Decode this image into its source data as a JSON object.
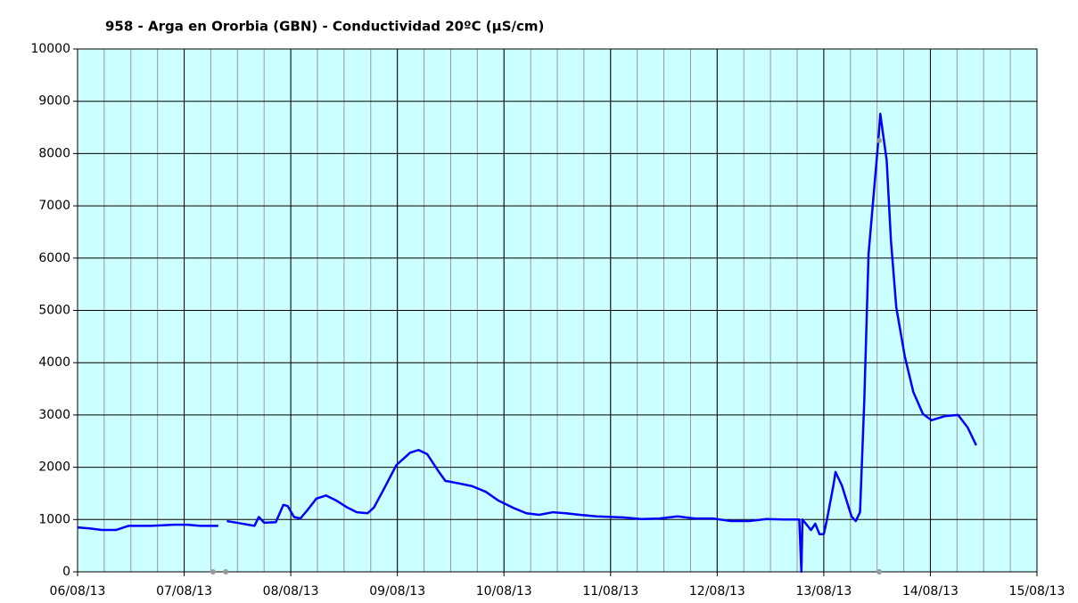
{
  "chart_data": {
    "type": "line",
    "title": "958 - Arga en Ororbia (GBN) - Conductividad 20ºC (µS/cm)",
    "xlim": [
      0,
      9
    ],
    "xticks": [
      {
        "value": 0,
        "label": "06/08/13"
      },
      {
        "value": 1,
        "label": "07/08/13"
      },
      {
        "value": 2,
        "label": "08/08/13"
      },
      {
        "value": 3,
        "label": "09/08/13"
      },
      {
        "value": 4,
        "label": "10/08/13"
      },
      {
        "value": 5,
        "label": "11/08/13"
      },
      {
        "value": 6,
        "label": "12/08/13"
      },
      {
        "value": 7,
        "label": "13/08/13"
      },
      {
        "value": 8,
        "label": "14/08/13"
      },
      {
        "value": 9,
        "label": "15/08/13"
      }
    ],
    "minor_xstep": 0.25,
    "ylim": [
      0,
      10000
    ],
    "yticks": [
      0,
      1000,
      2000,
      3000,
      4000,
      5000,
      6000,
      7000,
      8000,
      9000,
      10000
    ],
    "grid": true,
    "series": [
      {
        "color": "#0000ff",
        "x": [
          0,
          0.11,
          0.23,
          0.36,
          0.48,
          0.69,
          0.9,
          1.03,
          1.15,
          1.32,
          1.36,
          1.4,
          1.49,
          1.66,
          1.7,
          1.75,
          1.86,
          1.93,
          1.97,
          2.03,
          2.09,
          2.16,
          2.24,
          2.33,
          2.43,
          2.53,
          2.62,
          2.72,
          2.78,
          2.87,
          2.99,
          3.12,
          3.2,
          3.28,
          3.39,
          3.45,
          3.58,
          3.7,
          3.83,
          3.95,
          4.08,
          4.21,
          4.33,
          4.46,
          4.58,
          4.71,
          4.87,
          5.13,
          5.29,
          5.46,
          5.63,
          5.79,
          5.96,
          6.13,
          6.3,
          6.46,
          6.63,
          6.77,
          6.79,
          6.8,
          6.88,
          6.92,
          6.96,
          7.0,
          7.03,
          7.09,
          7.11,
          7.17,
          7.26,
          7.3,
          7.34,
          7.38,
          7.42,
          7.51,
          7.53,
          7.59,
          7.63,
          7.68,
          7.76,
          7.84,
          7.93,
          8.01,
          8.14,
          8.26,
          8.35,
          8.43
        ],
        "values": [
          850,
          830,
          800,
          800,
          880,
          880,
          900,
          900,
          880,
          880,
          null,
          970,
          940,
          880,
          1050,
          940,
          950,
          1280,
          1260,
          1050,
          1020,
          1190,
          1400,
          1460,
          1360,
          1230,
          1140,
          1120,
          1230,
          1570,
          2040,
          2280,
          2330,
          2250,
          1910,
          1740,
          1690,
          1640,
          1530,
          1360,
          1230,
          1120,
          1090,
          1140,
          1120,
          1090,
          1060,
          1040,
          1010,
          1020,
          1060,
          1020,
          1020,
          970,
          970,
          1010,
          1000,
          1000,
          0,
          1000,
          800,
          920,
          720,
          720,
          1000,
          1650,
          1910,
          1650,
          1060,
          970,
          1140,
          3270,
          6080,
          8210,
          8760,
          7870,
          6340,
          5060,
          4120,
          3440,
          3020,
          2900,
          2980,
          3000,
          2760,
          2420
        ]
      }
    ],
    "markers": {
      "color": "#999999",
      "x": [
        1.27,
        1.39,
        7.52,
        7.52
      ],
      "values": [
        0,
        0,
        0,
        8250
      ]
    }
  }
}
